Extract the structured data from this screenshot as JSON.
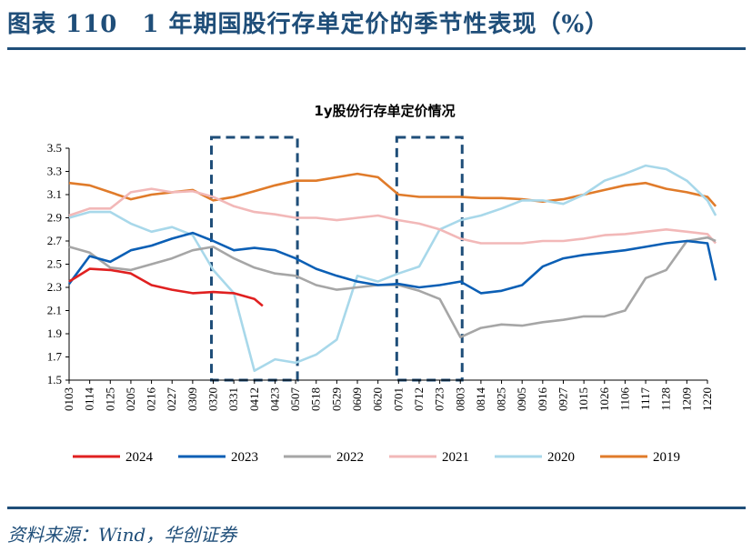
{
  "figure": {
    "title": "图表 110　1 年期国股行存单定价的季节性表现（%）",
    "source": "资料来源：Wind，华创证券"
  },
  "chart_data": {
    "type": "line",
    "title": "1y股份行存单定价情况",
    "ylim": [
      1.5,
      3.5
    ],
    "yticks": [
      "3.5",
      "3.3",
      "3.1",
      "2.9",
      "2.7",
      "2.5",
      "2.3",
      "2.1",
      "1.9",
      "1.7",
      "1.5"
    ],
    "xticks": [
      "0103",
      "0114",
      "0125",
      "0205",
      "0216",
      "0227",
      "0309",
      "0320",
      "0331",
      "0412",
      "0423",
      "0507",
      "0518",
      "0529",
      "0609",
      "0620",
      "0701",
      "0712",
      "0723",
      "0803",
      "0814",
      "0825",
      "0905",
      "0916",
      "0927",
      "1015",
      "1026",
      "1106",
      "1117",
      "1128",
      "1209",
      "1220"
    ],
    "highlight_windows": [
      [
        "0320",
        "0507"
      ],
      [
        "0701",
        "0803"
      ]
    ],
    "legend_position": "bottom",
    "series": [
      {
        "name": "2024",
        "color": "#e02020",
        "points": [
          [
            0,
            2.35
          ],
          [
            1,
            2.46
          ],
          [
            2,
            2.45
          ],
          [
            3,
            2.42
          ],
          [
            4,
            2.32
          ],
          [
            5,
            2.28
          ],
          [
            6,
            2.25
          ],
          [
            7,
            2.26
          ],
          [
            8,
            2.25
          ],
          [
            9,
            2.2
          ],
          [
            9.4,
            2.14
          ]
        ]
      },
      {
        "name": "2023",
        "color": "#0b5fb5",
        "points": [
          [
            0,
            2.33
          ],
          [
            1,
            2.57
          ],
          [
            2,
            2.52
          ],
          [
            3,
            2.62
          ],
          [
            4,
            2.66
          ],
          [
            5,
            2.72
          ],
          [
            6,
            2.77
          ],
          [
            7,
            2.7
          ],
          [
            8,
            2.62
          ],
          [
            9,
            2.64
          ],
          [
            10,
            2.62
          ],
          [
            11,
            2.55
          ],
          [
            12,
            2.46
          ],
          [
            13,
            2.4
          ],
          [
            14,
            2.35
          ],
          [
            15,
            2.32
          ],
          [
            16,
            2.33
          ],
          [
            17,
            2.3
          ],
          [
            18,
            2.32
          ],
          [
            19,
            2.35
          ],
          [
            20,
            2.25
          ],
          [
            21,
            2.27
          ],
          [
            22,
            2.32
          ],
          [
            23,
            2.48
          ],
          [
            24,
            2.55
          ],
          [
            25,
            2.58
          ],
          [
            26,
            2.6
          ],
          [
            27,
            2.62
          ],
          [
            28,
            2.65
          ],
          [
            29,
            2.68
          ],
          [
            30,
            2.7
          ],
          [
            31,
            2.68
          ],
          [
            31.4,
            2.36
          ]
        ]
      },
      {
        "name": "2022",
        "color": "#a6a6a6",
        "points": [
          [
            0,
            2.65
          ],
          [
            1,
            2.6
          ],
          [
            2,
            2.47
          ],
          [
            3,
            2.45
          ],
          [
            4,
            2.5
          ],
          [
            5,
            2.55
          ],
          [
            6,
            2.62
          ],
          [
            7,
            2.65
          ],
          [
            8,
            2.55
          ],
          [
            9,
            2.47
          ],
          [
            10,
            2.42
          ],
          [
            11,
            2.4
          ],
          [
            12,
            2.32
          ],
          [
            13,
            2.28
          ],
          [
            14,
            2.3
          ],
          [
            15,
            2.32
          ],
          [
            16,
            2.32
          ],
          [
            17,
            2.27
          ],
          [
            18,
            2.2
          ],
          [
            19,
            1.87
          ],
          [
            20,
            1.95
          ],
          [
            21,
            1.98
          ],
          [
            22,
            1.97
          ],
          [
            23,
            2.0
          ],
          [
            24,
            2.02
          ],
          [
            25,
            2.05
          ],
          [
            26,
            2.05
          ],
          [
            27,
            2.1
          ],
          [
            28,
            2.38
          ],
          [
            29,
            2.45
          ],
          [
            30,
            2.7
          ],
          [
            31,
            2.73
          ],
          [
            31.4,
            2.7
          ]
        ]
      },
      {
        "name": "2021",
        "color": "#f2b8b8",
        "points": [
          [
            0,
            2.92
          ],
          [
            1,
            2.98
          ],
          [
            2,
            2.98
          ],
          [
            3,
            3.12
          ],
          [
            4,
            3.15
          ],
          [
            5,
            3.12
          ],
          [
            6,
            3.13
          ],
          [
            7,
            3.08
          ],
          [
            8,
            3.0
          ],
          [
            9,
            2.95
          ],
          [
            10,
            2.93
          ],
          [
            11,
            2.9
          ],
          [
            12,
            2.9
          ],
          [
            13,
            2.88
          ],
          [
            14,
            2.9
          ],
          [
            15,
            2.92
          ],
          [
            16,
            2.88
          ],
          [
            17,
            2.85
          ],
          [
            18,
            2.8
          ],
          [
            19,
            2.72
          ],
          [
            20,
            2.68
          ],
          [
            21,
            2.68
          ],
          [
            22,
            2.68
          ],
          [
            23,
            2.7
          ],
          [
            24,
            2.7
          ],
          [
            25,
            2.72
          ],
          [
            26,
            2.75
          ],
          [
            27,
            2.76
          ],
          [
            28,
            2.78
          ],
          [
            29,
            2.8
          ],
          [
            30,
            2.78
          ],
          [
            31,
            2.76
          ],
          [
            31.4,
            2.68
          ]
        ]
      },
      {
        "name": "2020",
        "color": "#a8d8ea",
        "points": [
          [
            0,
            2.9
          ],
          [
            1,
            2.95
          ],
          [
            2,
            2.95
          ],
          [
            3,
            2.85
          ],
          [
            4,
            2.78
          ],
          [
            5,
            2.82
          ],
          [
            6,
            2.75
          ],
          [
            7,
            2.45
          ],
          [
            8,
            2.25
          ],
          [
            9,
            1.58
          ],
          [
            10,
            1.68
          ],
          [
            11,
            1.65
          ],
          [
            12,
            1.72
          ],
          [
            13,
            1.85
          ],
          [
            14,
            2.4
          ],
          [
            15,
            2.35
          ],
          [
            16,
            2.42
          ],
          [
            17,
            2.48
          ],
          [
            18,
            2.8
          ],
          [
            19,
            2.88
          ],
          [
            20,
            2.92
          ],
          [
            21,
            2.98
          ],
          [
            22,
            3.05
          ],
          [
            23,
            3.05
          ],
          [
            24,
            3.02
          ],
          [
            25,
            3.1
          ],
          [
            26,
            3.22
          ],
          [
            27,
            3.28
          ],
          [
            28,
            3.35
          ],
          [
            29,
            3.32
          ],
          [
            30,
            3.22
          ],
          [
            31,
            3.05
          ],
          [
            31.4,
            2.92
          ]
        ]
      },
      {
        "name": "2019",
        "color": "#e07b2a",
        "points": [
          [
            0,
            3.2
          ],
          [
            1,
            3.18
          ],
          [
            2,
            3.12
          ],
          [
            3,
            3.06
          ],
          [
            4,
            3.1
          ],
          [
            5,
            3.12
          ],
          [
            6,
            3.14
          ],
          [
            7,
            3.05
          ],
          [
            8,
            3.08
          ],
          [
            9,
            3.13
          ],
          [
            10,
            3.18
          ],
          [
            11,
            3.22
          ],
          [
            12,
            3.22
          ],
          [
            13,
            3.25
          ],
          [
            14,
            3.28
          ],
          [
            15,
            3.25
          ],
          [
            16,
            3.1
          ],
          [
            17,
            3.08
          ],
          [
            18,
            3.08
          ],
          [
            19,
            3.08
          ],
          [
            20,
            3.07
          ],
          [
            21,
            3.07
          ],
          [
            22,
            3.06
          ],
          [
            23,
            3.04
          ],
          [
            24,
            3.06
          ],
          [
            25,
            3.1
          ],
          [
            26,
            3.14
          ],
          [
            27,
            3.18
          ],
          [
            28,
            3.2
          ],
          [
            29,
            3.15
          ],
          [
            30,
            3.12
          ],
          [
            31,
            3.08
          ],
          [
            31.4,
            3.0
          ]
        ]
      }
    ]
  }
}
